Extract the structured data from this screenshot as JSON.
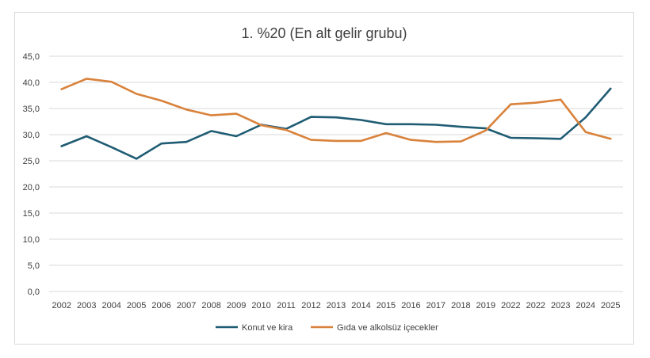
{
  "chart_data": {
    "type": "line",
    "title": "1. %20 (En alt gelir grubu)",
    "categories": [
      "2002",
      "2003",
      "2004",
      "2005",
      "2006",
      "2007",
      "2008",
      "2009",
      "2010",
      "2011",
      "2012",
      "2013",
      "2014",
      "2015",
      "2016",
      "2017",
      "2018",
      "2019",
      "2022",
      "2022",
      "2023",
      "2024",
      "2025"
    ],
    "y_ticks": [
      "0,0",
      "5,0",
      "10,0",
      "15,0",
      "20,0",
      "25,0",
      "30,0",
      "35,0",
      "40,0",
      "45,0"
    ],
    "ylim": [
      0,
      45
    ],
    "grid": true,
    "legend_position": "bottom",
    "series": [
      {
        "name": "Konut ve kira",
        "color": "#1f5c73",
        "values": [
          27.8,
          29.7,
          27.6,
          25.4,
          28.3,
          28.6,
          30.7,
          29.7,
          31.9,
          31.1,
          33.4,
          33.3,
          32.8,
          32.0,
          32.0,
          31.9,
          31.5,
          31.2,
          29.4,
          29.3,
          29.2,
          33.3,
          38.8
        ]
      },
      {
        "name": "Gıda ve alkolsüz içecekler",
        "color": "#d9823b",
        "values": [
          38.7,
          40.7,
          40.1,
          37.8,
          36.5,
          34.8,
          33.7,
          34.0,
          31.8,
          30.9,
          29.0,
          28.8,
          28.8,
          30.3,
          29.0,
          28.6,
          28.7,
          30.8,
          35.8,
          36.1,
          36.7,
          30.5,
          29.2
        ]
      }
    ]
  }
}
